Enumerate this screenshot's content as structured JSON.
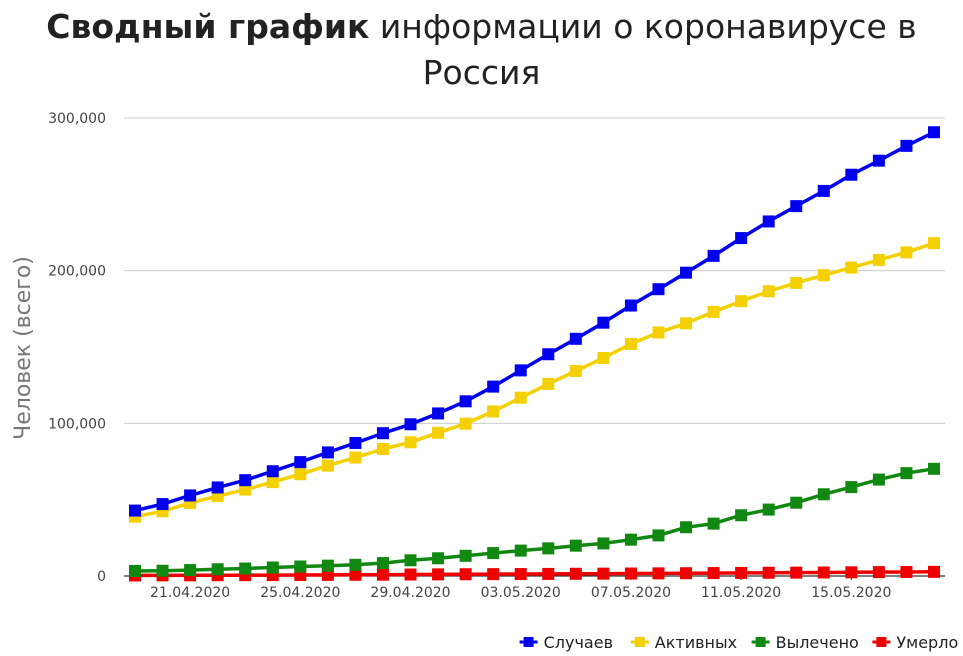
{
  "title": {
    "bold": "Сводный график",
    "rest_line1": "информации о коронавирусе в",
    "line2": "Россия"
  },
  "chart_data": {
    "type": "line",
    "ylabel": "Человек (всего)",
    "xlabel": "",
    "ylim": [
      0,
      300000
    ],
    "y_ticks": [
      "0",
      "100,000",
      "200,000",
      "300,000"
    ],
    "x_tick_labels": [
      "21.04.2020",
      "25.04.2020",
      "29.04.2020",
      "03.05.2020",
      "07.05.2020",
      "11.05.2020",
      "15.05.2020"
    ],
    "x": [
      "19.04.2020",
      "20.04.2020",
      "21.04.2020",
      "22.04.2020",
      "23.04.2020",
      "24.04.2020",
      "25.04.2020",
      "26.04.2020",
      "27.04.2020",
      "28.04.2020",
      "29.04.2020",
      "30.04.2020",
      "01.05.2020",
      "02.05.2020",
      "03.05.2020",
      "04.05.2020",
      "05.05.2020",
      "06.05.2020",
      "07.05.2020",
      "08.05.2020",
      "09.05.2020",
      "10.05.2020",
      "11.05.2020",
      "12.05.2020",
      "13.05.2020",
      "14.05.2020",
      "15.05.2020",
      "16.05.2020",
      "17.05.2020",
      "18.05.2020"
    ],
    "grid": true,
    "legend_position": "bottom-right",
    "series": [
      {
        "name": "Случаев",
        "color": "#0000ee",
        "values": [
          42853,
          47121,
          52763,
          57999,
          62773,
          68622,
          74588,
          80949,
          87147,
          93558,
          99399,
          106498,
          114431,
          124054,
          134687,
          145268,
          155370,
          165929,
          177160,
          187859,
          198676,
          209688,
          221344,
          232243,
          242271,
          252245,
          262843,
          272043,
          281752,
          290678
        ]
      },
      {
        "name": "Активных",
        "color": "#f5d000",
        "values": [
          38900,
          42400,
          47900,
          52300,
          56600,
          61500,
          66700,
          72300,
          77600,
          83200,
          87600,
          93800,
          99800,
          107800,
          116800,
          125800,
          134300,
          142800,
          152000,
          159500,
          165500,
          173000,
          180000,
          186500,
          192000,
          197000,
          202000,
          207000,
          212000,
          218000
        ]
      },
      {
        "name": "Вылечено",
        "color": "#118811",
        "values": [
          3291,
          3446,
          3873,
          4420,
          4891,
          5568,
          6217,
          6767,
          7346,
          8456,
          10286,
          11619,
          13220,
          15013,
          16639,
          18095,
          19865,
          21327,
          23803,
          26608,
          31916,
          34306,
          39801,
          43512,
          48003,
          53530,
          58226,
          63166,
          67373,
          70209
        ]
      },
      {
        "name": "Умерло",
        "color": "#ee0000",
        "values": [
          361,
          405,
          456,
          513,
          555,
          615,
          681,
          747,
          794,
          867,
          972,
          1073,
          1169,
          1222,
          1280,
          1356,
          1451,
          1537,
          1625,
          1723,
          1827,
          1915,
          2009,
          2116,
          2212,
          2305,
          2418,
          2537,
          2631,
          2722
        ]
      }
    ]
  }
}
